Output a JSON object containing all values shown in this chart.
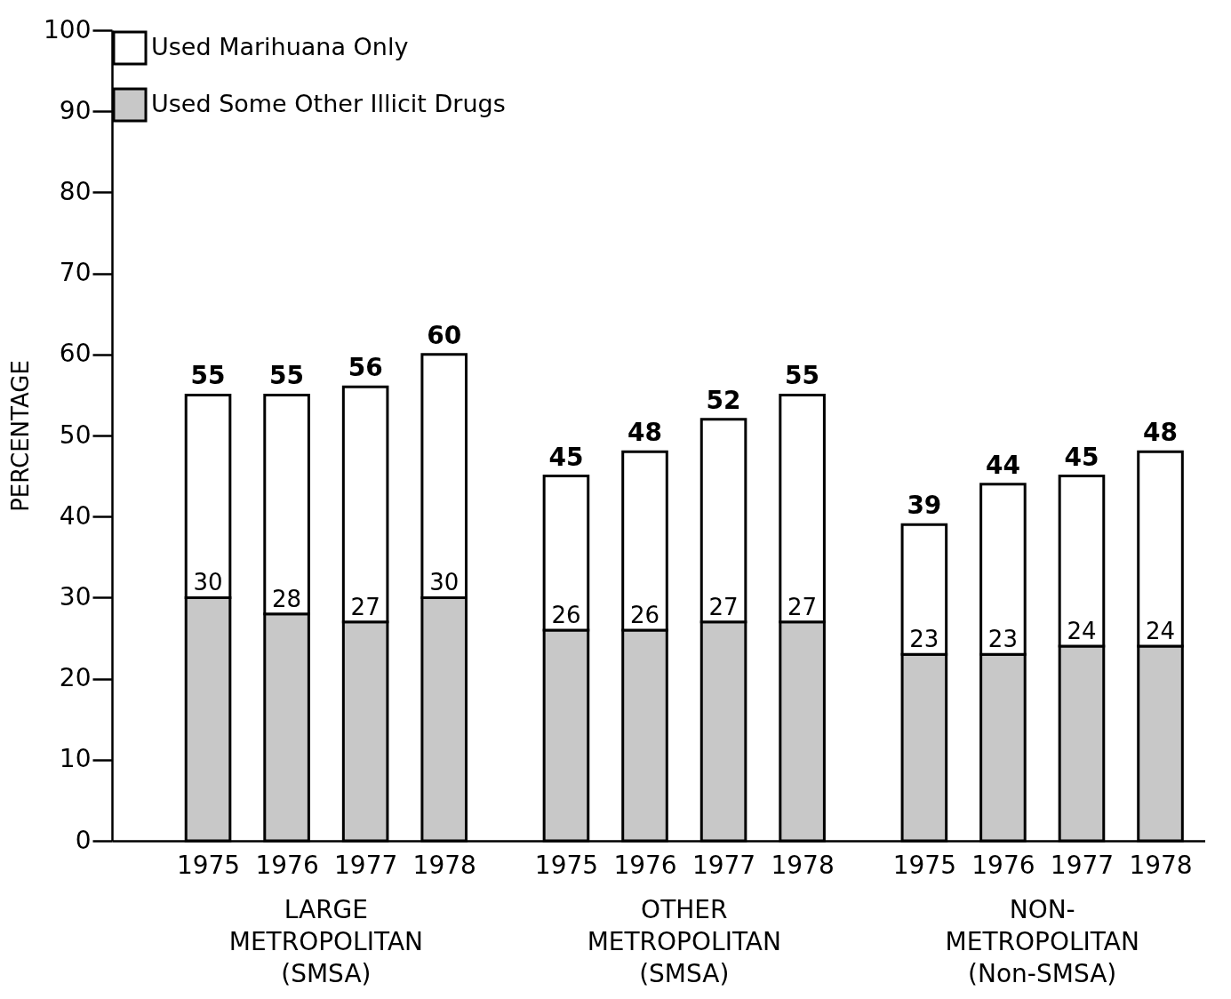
{
  "chart_data": {
    "type": "bar",
    "stacked": true,
    "ylabel": "PERCENTAGE",
    "categories": [
      "1975",
      "1976",
      "1977",
      "1978",
      "1975",
      "1976",
      "1977",
      "1978",
      "1975",
      "1976",
      "1977",
      "1978"
    ],
    "series": [
      {
        "name": "Used Some Other Illicit Drugs",
        "color": "#c8c8c8",
        "values": [
          30,
          28,
          27,
          30,
          26,
          26,
          27,
          27,
          23,
          23,
          24,
          24
        ],
        "value_labels": [
          "30",
          "28",
          "27",
          "30",
          "26",
          "26",
          "27",
          "27",
          "23",
          "23",
          "24",
          "24"
        ]
      },
      {
        "name": "Used Marihuana Only",
        "color": "#ffffff",
        "values": [
          25,
          27,
          29,
          30,
          19,
          22,
          25,
          28,
          16,
          21,
          21,
          24
        ]
      }
    ],
    "totals": [
      "55",
      "55",
      "56",
      "60",
      "45",
      "48",
      "52",
      "55",
      "39",
      "44",
      "45",
      "48"
    ],
    "ylim": [
      0,
      100
    ],
    "yticks": [
      0,
      10,
      20,
      30,
      40,
      50,
      60,
      70,
      80,
      90,
      100
    ],
    "grid": false,
    "legend": "top left",
    "annotations": [
      "LARGE METROPOLITAN (SMSA)",
      "OTHER METROPOLITAN (SMSA)",
      "NON- METROPOLITAN (Non-SMSA)"
    ]
  }
}
